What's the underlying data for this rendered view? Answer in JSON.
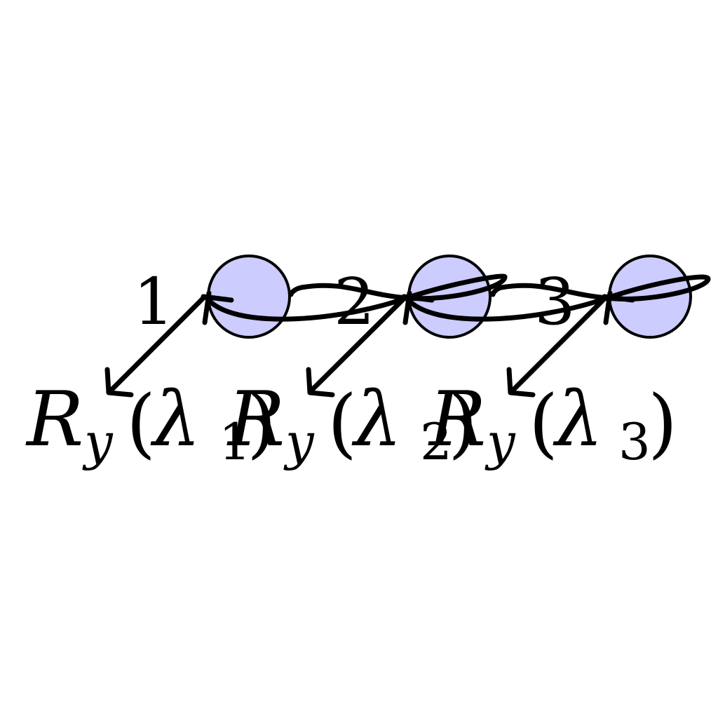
{
  "colors": {
    "node_fill": "#ccccff",
    "stroke": "#000000",
    "background": "#ffffff"
  },
  "sites": [
    {
      "index_label": "1",
      "rotation": {
        "symbol": "R",
        "axis": "y",
        "open": "(",
        "param": "λ",
        "param_sub": "1",
        "close": ")"
      }
    },
    {
      "index_label": "2",
      "rotation": {
        "symbol": "R",
        "axis": "y",
        "open": "(",
        "param": "λ",
        "param_sub": "2",
        "close": ")"
      }
    },
    {
      "index_label": "3",
      "rotation": {
        "symbol": "R",
        "axis": "y",
        "open": "(",
        "param": "λ",
        "param_sub": "3",
        "close": ")"
      }
    }
  ]
}
